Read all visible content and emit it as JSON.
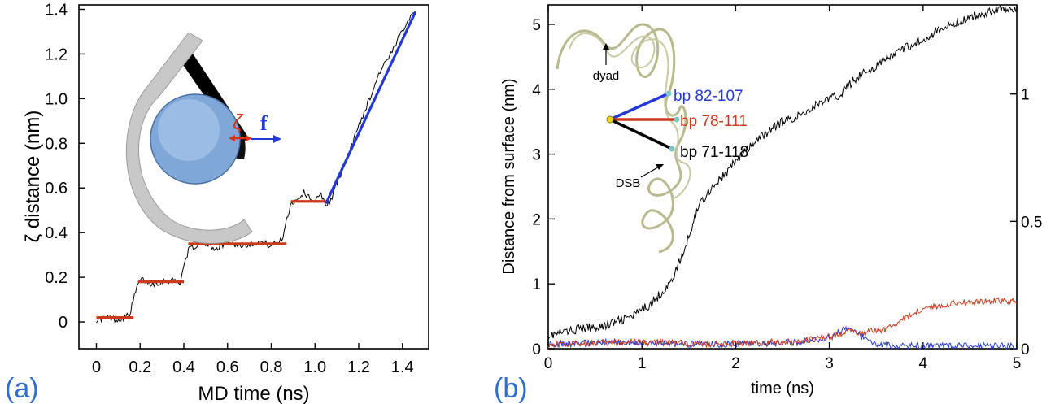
{
  "panel_labels": {
    "a": "(a)",
    "b": "(b)"
  },
  "colors": {
    "red": "#cc3a1c",
    "blue": "#2438d6",
    "black": "#000000",
    "panel_label": "#2f6fd1",
    "dna": "#b9b98e"
  },
  "chart_data": [
    {
      "type": "line",
      "panel": "a",
      "xlabel": "MD time (ns)",
      "ylabel": "ζ distance (nm)",
      "xlim": [
        -0.08,
        1.52
      ],
      "ylim": [
        -0.12,
        1.42
      ],
      "xticks": [
        0,
        0.2,
        0.4,
        0.6,
        0.8,
        1.0,
        1.2,
        1.4
      ],
      "xtick_labels": [
        "0",
        "0.2",
        "0.4",
        "0.6",
        "0.8",
        "1.0",
        "1.2",
        "1.4"
      ],
      "yticks": [
        0,
        0.2,
        0.4,
        0.6,
        0.8,
        1.0,
        1.2,
        1.4
      ],
      "ytick_labels": [
        "0",
        "0.2",
        "0.4",
        "0.6",
        "0.8",
        "1.0",
        "1.2",
        "1.4"
      ],
      "series": [
        {
          "color": "#000000",
          "x": [
            0,
            0.05,
            0.1,
            0.15,
            0.17,
            0.19,
            0.21,
            0.25,
            0.3,
            0.35,
            0.38,
            0.4,
            0.42,
            0.45,
            0.5,
            0.55,
            0.6,
            0.65,
            0.7,
            0.75,
            0.8,
            0.85,
            0.87,
            0.89,
            0.92,
            0.95,
            1.0,
            1.03,
            1.05,
            1.08,
            1.1,
            1.15,
            1.2,
            1.25,
            1.3,
            1.35,
            1.4,
            1.43,
            1.46
          ],
          "y": [
            0.01,
            0.02,
            0.01,
            0.03,
            0.1,
            0.17,
            0.19,
            0.17,
            0.18,
            0.19,
            0.17,
            0.25,
            0.32,
            0.34,
            0.35,
            0.33,
            0.36,
            0.34,
            0.35,
            0.36,
            0.34,
            0.37,
            0.46,
            0.53,
            0.55,
            0.58,
            0.54,
            0.57,
            0.52,
            0.56,
            0.62,
            0.74,
            0.88,
            1.0,
            1.13,
            1.2,
            1.31,
            1.36,
            1.4
          ]
        }
      ],
      "plateaus": [
        {
          "x0": 0.0,
          "x1": 0.17,
          "y": 0.02
        },
        {
          "x0": 0.19,
          "x1": 0.4,
          "y": 0.18
        },
        {
          "x0": 0.42,
          "x1": 0.87,
          "y": 0.35
        },
        {
          "x0": 0.89,
          "x1": 1.05,
          "y": 0.54
        }
      ],
      "fit_line": {
        "x0": 1.05,
        "y0": 0.53,
        "x1": 1.46,
        "y1": 1.39
      },
      "inset_labels": {
        "zeta": "ζ",
        "force": "f"
      }
    },
    {
      "type": "line",
      "panel": "b",
      "xlabel": "time (ns)",
      "ylabel": "Distance from surface (nm)",
      "xlim": [
        0,
        5
      ],
      "ylim": [
        0,
        5.3
      ],
      "xticks": [
        0,
        1,
        2,
        3,
        4,
        5
      ],
      "xtick_labels": [
        "0",
        "1",
        "2",
        "3",
        "4",
        "5"
      ],
      "yticks": [
        0,
        1,
        2,
        3,
        4,
        5
      ],
      "ytick_labels": [
        "0",
        "1",
        "2",
        "3",
        "4",
        "5"
      ],
      "y2ticks": [
        0,
        0.5,
        1
      ],
      "y2tick_labels": [
        "0",
        "0.5",
        "1"
      ],
      "y2lim": [
        0,
        1.35
      ],
      "series": [
        {
          "label": "bp 71-118",
          "color": "#000000",
          "x": [
            0,
            0.3,
            0.6,
            0.9,
            1.1,
            1.3,
            1.45,
            1.6,
            1.75,
            1.9,
            2.0,
            2.15,
            2.3,
            2.5,
            2.7,
            2.9,
            3.1,
            3.3,
            3.5,
            3.7,
            3.9,
            4.1,
            4.3,
            4.5,
            4.7,
            4.85,
            5.0
          ],
          "y": [
            0.2,
            0.3,
            0.35,
            0.5,
            0.7,
            1.0,
            1.5,
            2.2,
            2.5,
            2.7,
            2.9,
            3.1,
            3.3,
            3.5,
            3.6,
            3.8,
            3.9,
            4.2,
            4.35,
            4.55,
            4.7,
            4.85,
            5.0,
            5.1,
            5.2,
            5.25,
            5.2
          ]
        },
        {
          "label": "bp 78-111",
          "color": "#cc3a1c",
          "x": [
            0,
            0.3,
            0.6,
            0.9,
            1.2,
            1.5,
            1.8,
            2.1,
            2.4,
            2.7,
            2.9,
            3.1,
            3.2,
            3.3,
            3.45,
            3.6,
            3.75,
            3.9,
            4.0,
            4.2,
            4.4,
            4.6,
            4.8,
            5.0
          ],
          "y": [
            0.06,
            0.08,
            0.09,
            0.1,
            0.1,
            0.08,
            0.07,
            0.09,
            0.1,
            0.12,
            0.16,
            0.2,
            0.3,
            0.22,
            0.27,
            0.3,
            0.42,
            0.55,
            0.62,
            0.67,
            0.72,
            0.72,
            0.74,
            0.73
          ]
        },
        {
          "label": "bp 82-107",
          "color": "#2438d6",
          "x": [
            0,
            0.3,
            0.6,
            0.9,
            1.2,
            1.5,
            1.8,
            2.1,
            2.4,
            2.7,
            2.9,
            3.05,
            3.2,
            3.3,
            3.45,
            3.6,
            3.8,
            4.0,
            4.3,
            4.6,
            5.0
          ],
          "y": [
            0.07,
            0.08,
            0.1,
            0.09,
            0.08,
            0.07,
            0.07,
            0.08,
            0.08,
            0.1,
            0.14,
            0.22,
            0.32,
            0.22,
            0.1,
            0.05,
            0.04,
            0.05,
            0.04,
            0.05,
            0.04
          ]
        }
      ],
      "inset_labels": {
        "dyad": "dyad",
        "dsb": "DSB",
        "bp_blue": "bp 82-107",
        "bp_red": "bp 78-111",
        "bp_black": "bp 71-118"
      }
    }
  ]
}
